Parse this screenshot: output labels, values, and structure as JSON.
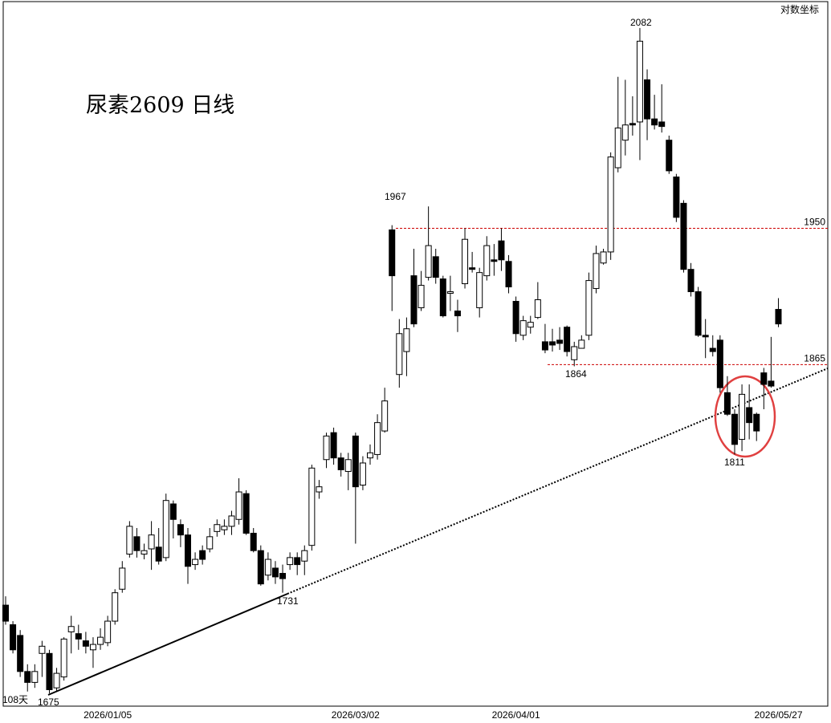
{
  "chart_data": {
    "type": "candlestick",
    "title": "尿素2609 日线",
    "scale_label": "对数坐标",
    "period_label": "108天",
    "log_scale": true,
    "up_color": "#ffffff",
    "down_color": "#000000",
    "ylim": [
      1668,
      2100
    ],
    "hlines": [
      1950,
      1865
    ],
    "hline_color": "#cc0000",
    "annotations": [
      "2082",
      "1967",
      "1864",
      "1811",
      "1731",
      "1675"
    ],
    "categories": [
      null,
      null,
      null,
      null,
      null,
      null,
      null,
      null,
      null,
      null,
      null,
      null,
      null,
      null,
      "2026/01/05",
      null,
      null,
      null,
      null,
      null,
      null,
      null,
      null,
      null,
      null,
      null,
      null,
      null,
      null,
      null,
      null,
      null,
      null,
      null,
      null,
      null,
      null,
      null,
      null,
      null,
      null,
      null,
      null,
      null,
      null,
      null,
      null,
      null,
      "2026/03/02",
      null,
      null,
      null,
      null,
      null,
      null,
      null,
      null,
      null,
      null,
      null,
      null,
      null,
      null,
      null,
      null,
      null,
      null,
      null,
      null,
      null,
      "2026/04/01",
      null,
      null,
      null,
      null,
      null,
      null,
      null,
      null,
      null,
      null,
      null,
      null,
      null,
      null,
      null,
      null,
      null,
      null,
      null,
      null,
      null,
      null,
      null,
      null,
      null,
      null,
      null,
      null,
      null,
      null,
      null,
      null,
      null,
      null,
      null,
      "2026/05/27"
    ],
    "open": [
      1724,
      1713,
      1707,
      1687,
      1681,
      1697,
      1697,
      1678,
      1684,
      1709,
      1708,
      1704,
      1699,
      1702,
      1703,
      1715,
      1733,
      1753,
      1763,
      1753,
      1756,
      1757,
      1751,
      1782,
      1770,
      1764,
      1747,
      1755,
      1756,
      1766,
      1767,
      1769,
      1773,
      1788,
      1765,
      1755,
      1741,
      1745,
      1742,
      1747,
      1751,
      1749,
      1758,
      1789,
      1808,
      1824,
      1809,
      1801,
      1822,
      1793,
      1809,
      1811,
      1825,
      1949,
      1859,
      1873,
      1920,
      1900,
      1919,
      1932,
      1918,
      1909,
      1898,
      1915,
      1925,
      1900,
      1920,
      1930,
      1942,
      1929,
      1904,
      1883,
      1888,
      1894,
      1879,
      1879,
      1880,
      1888,
      1868,
      1875,
      1883,
      1912,
      1928,
      1935,
      1989,
      2007,
      2018,
      2019,
      2047,
      2021,
      2019,
      2007,
      1983,
      1966,
      1924,
      1910,
      1883,
      1875,
      1880,
      1848,
      1835,
      1820,
      1839,
      1835,
      1860,
      1855,
      1899
    ],
    "high": [
      1729,
      1715,
      1710,
      1691,
      1691,
      1704,
      1699,
      1689,
      1706,
      1718,
      1713,
      1709,
      1706,
      1711,
      1718,
      1733,
      1749,
      1772,
      1768,
      1759,
      1772,
      1768,
      1788,
      1784,
      1773,
      1768,
      1754,
      1758,
      1768,
      1773,
      1773,
      1778,
      1797,
      1790,
      1768,
      1758,
      1754,
      1749,
      1747,
      1754,
      1754,
      1758,
      1805,
      1796,
      1824,
      1827,
      1812,
      1812,
      1824,
      1810,
      1817,
      1835,
      1851,
      1952,
      1893,
      1894,
      1937,
      1923,
      1964,
      1937,
      1920,
      1920,
      1905,
      1950,
      1935,
      1925,
      1945,
      1940,
      1950,
      1933,
      1907,
      1895,
      1895,
      1916,
      1890,
      1887,
      1888,
      1889,
      1879,
      1883,
      1922,
      1939,
      1937,
      1999,
      2049,
      2047,
      2036,
      2082,
      2054,
      2037,
      2044,
      2010,
      1985,
      1968,
      1928,
      1913,
      1893,
      1883,
      1883,
      1858,
      1838,
      1853,
      1853,
      1836,
      1863,
      1882,
      1906
    ],
    "low": [
      1713,
      1697,
      1684,
      1676,
      1678,
      1684,
      1675,
      1676,
      1682,
      1697,
      1699,
      1697,
      1689,
      1699,
      1701,
      1713,
      1731,
      1751,
      1751,
      1750,
      1744,
      1747,
      1749,
      1762,
      1757,
      1736,
      1744,
      1747,
      1754,
      1763,
      1764,
      1764,
      1770,
      1764,
      1754,
      1735,
      1738,
      1736,
      1731,
      1744,
      1741,
      1741,
      1755,
      1785,
      1803,
      1805,
      1798,
      1790,
      1759,
      1790,
      1805,
      1808,
      1824,
      1898,
      1851,
      1858,
      1888,
      1898,
      1917,
      1915,
      1894,
      1898,
      1885,
      1912,
      1922,
      1894,
      1917,
      1920,
      1923,
      1909,
      1879,
      1880,
      1884,
      1893,
      1872,
      1873,
      1874,
      1870,
      1864,
      1878,
      1880,
      1909,
      1927,
      1930,
      1986,
      1997,
      2010,
      1994,
      2007,
      2014,
      2012,
      1985,
      1954,
      1922,
      1907,
      1882,
      1869,
      1870,
      1848,
      1834,
      1811,
      1813,
      1820,
      1819,
      1838,
      1851,
      1888
    ],
    "close": [
      1715,
      1699,
      1687,
      1681,
      1687,
      1701,
      1677,
      1686,
      1705,
      1712,
      1705,
      1701,
      1702,
      1706,
      1715,
      1731,
      1745,
      1769,
      1755,
      1755,
      1764,
      1749,
      1784,
      1773,
      1764,
      1746,
      1750,
      1750,
      1763,
      1770,
      1769,
      1775,
      1789,
      1765,
      1755,
      1736,
      1750,
      1740,
      1739,
      1751,
      1747,
      1755,
      1803,
      1792,
      1822,
      1809,
      1802,
      1808,
      1792,
      1806,
      1812,
      1830,
      1843,
      1920,
      1884,
      1887,
      1890,
      1914,
      1939,
      1919,
      1895,
      1910,
      1895,
      1943,
      1924,
      1922,
      1939,
      1929,
      1930,
      1913,
      1884,
      1892,
      1891,
      1905,
      1874,
      1877,
      1878,
      1873,
      1876,
      1880,
      1917,
      1934,
      1935,
      1996,
      2015,
      2017,
      2017,
      2073,
      2021,
      2017,
      2016,
      1987,
      1957,
      1924,
      1910,
      1883,
      1882,
      1873,
      1851,
      1835,
      1817,
      1847,
      1830,
      1825,
      1853,
      1852,
      1890
    ]
  }
}
